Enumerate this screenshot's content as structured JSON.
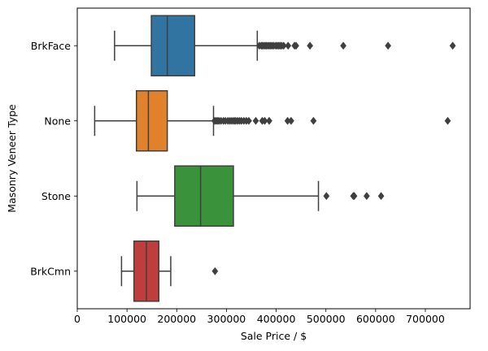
{
  "chart_data": {
    "type": "boxplot",
    "orientation": "horizontal",
    "xlabel": "Sale Price / $",
    "ylabel": "Masonry Veneer Type",
    "xlim": [
      0,
      790000
    ],
    "xticks": [
      0,
      100000,
      200000,
      300000,
      400000,
      500000,
      600000,
      700000
    ],
    "grid": false,
    "series": [
      {
        "name": "BrkFace",
        "color": "#3274a1",
        "whisker_low": 75000,
        "q1": 149000,
        "median": 181000,
        "q3": 236000,
        "whisker_high": 362000,
        "outliers": [
          366000,
          370000,
          372000,
          375000,
          378000,
          380000,
          383000,
          386000,
          389000,
          392000,
          395000,
          399000,
          402000,
          405000,
          408000,
          411000,
          415000,
          424000,
          437000,
          440000,
          468000,
          535000,
          625000,
          755000
        ]
      },
      {
        "name": "None",
        "color": "#e1812c",
        "whisker_low": 35000,
        "q1": 119000,
        "median": 143000,
        "q3": 181000,
        "whisker_high": 274000,
        "outliers": [
          276000,
          279000,
          282000,
          285000,
          289000,
          294000,
          298000,
          303000,
          307000,
          311000,
          315000,
          318000,
          322000,
          326000,
          330000,
          335000,
          340000,
          345000,
          359000,
          372000,
          377000,
          386000,
          423000,
          430000,
          475000,
          745000
        ]
      },
      {
        "name": "Stone",
        "color": "#3a923a",
        "whisker_low": 120000,
        "q1": 196000,
        "median": 248000,
        "q3": 314000,
        "whisker_high": 485000,
        "outliers": [
          501000,
          555000,
          557000,
          582000,
          611000
        ]
      },
      {
        "name": "BrkCmn",
        "color": "#c03d3e",
        "whisker_low": 89000,
        "q1": 114000,
        "median": 139000,
        "q3": 164000,
        "whisker_high": 188000,
        "outliers": [
          277000
        ]
      }
    ]
  }
}
